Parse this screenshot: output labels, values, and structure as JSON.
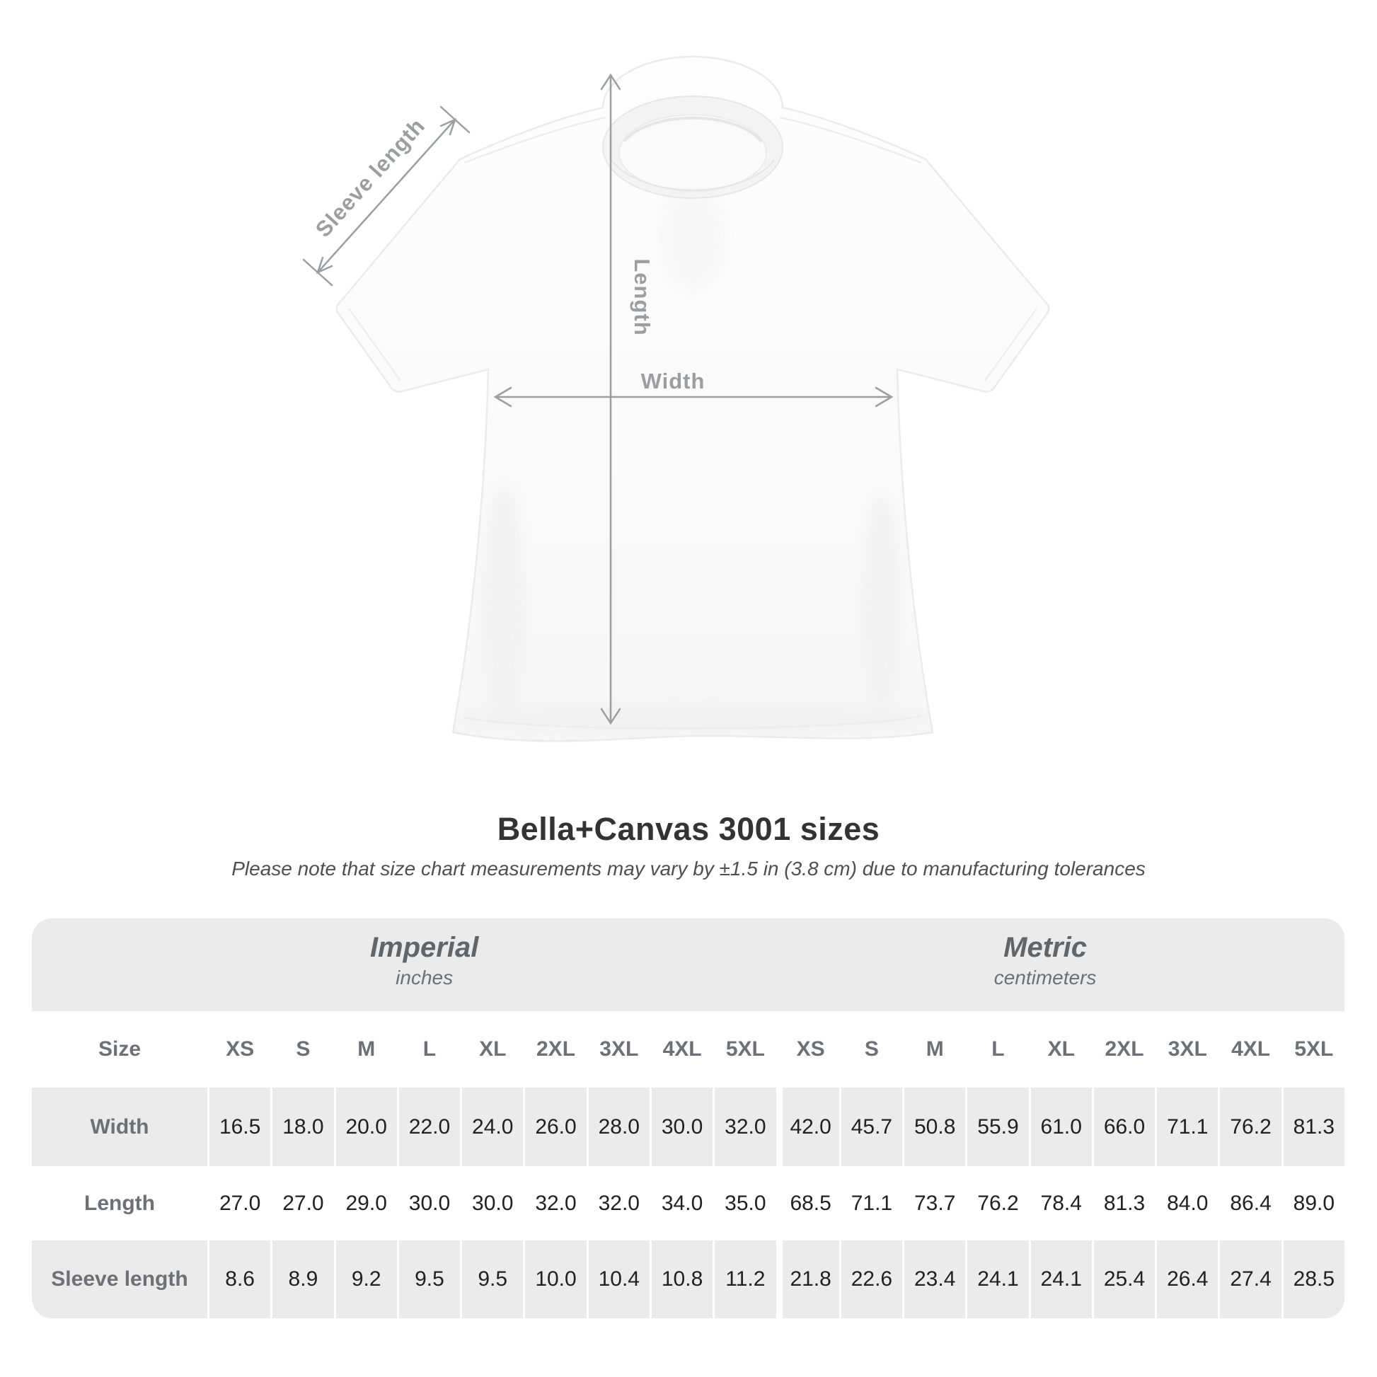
{
  "diagram": {
    "sleeve_length_label": "Sleeve length",
    "length_label": "Length",
    "width_label": "Width"
  },
  "header": {
    "title": "Bella+Canvas 3001 sizes",
    "subtitle": "Please note that size chart measurements may vary by ±1.5 in (3.8 cm) due to manufacturing tolerances"
  },
  "table": {
    "size_label": "Size",
    "groups": [
      {
        "name": "Imperial",
        "unit": "inches"
      },
      {
        "name": "Metric",
        "unit": "centimeters"
      }
    ],
    "sizes": [
      "XS",
      "S",
      "M",
      "L",
      "XL",
      "2XL",
      "3XL",
      "4XL",
      "5XL"
    ],
    "rows": [
      {
        "label": "Width",
        "imperial": [
          "16.5",
          "18.0",
          "20.0",
          "22.0",
          "24.0",
          "26.0",
          "28.0",
          "30.0",
          "32.0"
        ],
        "metric": [
          "42.0",
          "45.7",
          "50.8",
          "55.9",
          "61.0",
          "66.0",
          "71.1",
          "76.2",
          "81.3"
        ]
      },
      {
        "label": "Length",
        "imperial": [
          "27.0",
          "27.0",
          "29.0",
          "30.0",
          "30.0",
          "32.0",
          "32.0",
          "34.0",
          "35.0"
        ],
        "metric": [
          "68.5",
          "71.1",
          "73.7",
          "76.2",
          "78.4",
          "81.3",
          "84.0",
          "86.4",
          "89.0"
        ]
      },
      {
        "label": "Sleeve length",
        "imperial": [
          "8.6",
          "8.9",
          "9.2",
          "9.5",
          "9.5",
          "10.0",
          "10.4",
          "10.8",
          "11.2"
        ],
        "metric": [
          "21.8",
          "22.6",
          "23.4",
          "24.1",
          "24.1",
          "25.4",
          "26.4",
          "27.4",
          "28.5"
        ]
      }
    ]
  },
  "chart_data": {
    "type": "table",
    "title": "Bella+Canvas 3001 sizes",
    "note": "Please note that size chart measurements may vary by ±1.5 in (3.8 cm) due to manufacturing tolerances",
    "column_groups": [
      {
        "name": "Imperial",
        "unit": "inches"
      },
      {
        "name": "Metric",
        "unit": "centimeters"
      }
    ],
    "columns": [
      "XS",
      "S",
      "M",
      "L",
      "XL",
      "2XL",
      "3XL",
      "4XL",
      "5XL"
    ],
    "rows": [
      {
        "label": "Width",
        "imperial_in": [
          16.5,
          18.0,
          20.0,
          22.0,
          24.0,
          26.0,
          28.0,
          30.0,
          32.0
        ],
        "metric_cm": [
          42.0,
          45.7,
          50.8,
          55.9,
          61.0,
          66.0,
          71.1,
          76.2,
          81.3
        ]
      },
      {
        "label": "Length",
        "imperial_in": [
          27.0,
          27.0,
          29.0,
          30.0,
          30.0,
          32.0,
          32.0,
          34.0,
          35.0
        ],
        "metric_cm": [
          68.5,
          71.1,
          73.7,
          76.2,
          78.4,
          81.3,
          84.0,
          86.4,
          89.0
        ]
      },
      {
        "label": "Sleeve length",
        "imperial_in": [
          8.6,
          8.9,
          9.2,
          9.5,
          9.5,
          10.0,
          10.4,
          10.8,
          11.2
        ],
        "metric_cm": [
          21.8,
          22.6,
          23.4,
          24.1,
          24.1,
          25.4,
          26.4,
          27.4,
          28.5
        ]
      }
    ]
  },
  "colors": {
    "background": "#ffffff",
    "band_gray": "#ebebeb",
    "row_shade_gray": "#ebebeb",
    "table_label_text": "#6b7176",
    "table_value_text": "#212121",
    "title_text": "#333333",
    "subtitle_text": "#4f4f4f",
    "annotation_gray": "#9b9ea1",
    "shirt_fill": "#fbfbfb",
    "shirt_outline": "#ebebeb"
  }
}
